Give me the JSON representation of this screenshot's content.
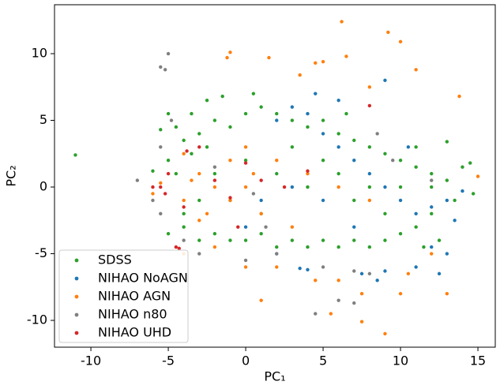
{
  "chart_data": {
    "type": "scatter",
    "xlabel": "PC₁",
    "ylabel": "PC₂",
    "xlim": [
      -12.35,
      16.12
    ],
    "ylim": [
      -12.01,
      13.67
    ],
    "xticks": [
      -10,
      -5,
      0,
      5,
      10,
      15
    ],
    "yticks": [
      -10,
      -5,
      0,
      5,
      10
    ],
    "legend": "lower left",
    "grid": false,
    "series": [
      {
        "name": "SDSS",
        "color": "#2ca02c",
        "x": [
          -11,
          -4,
          -3.5,
          -3,
          -2.5,
          -4.5,
          -3,
          -2,
          -1,
          0,
          1,
          2,
          3,
          4,
          5,
          6,
          7,
          8,
          9,
          10,
          11,
          12,
          13,
          14,
          14.5,
          13.5,
          12,
          11,
          10,
          9,
          8,
          7,
          6,
          5,
          4,
          3,
          2,
          1,
          0,
          -1,
          -2,
          -3,
          -4,
          -5,
          -5,
          -4,
          -2,
          0,
          2,
          4,
          6,
          8,
          10,
          12,
          3,
          5,
          7,
          9,
          1,
          -1,
          -4.5,
          -3.5,
          -2.5,
          -1.5,
          0.5,
          -5.5,
          -5,
          6.5,
          11,
          13,
          14.7,
          12.5,
          11.5,
          -6
        ],
        "y": [
          2.4,
          3.5,
          2.5,
          4,
          3,
          1,
          -1,
          5,
          4.5,
          5.5,
          6,
          5.5,
          5,
          4.5,
          5,
          4,
          3.5,
          3,
          2.5,
          2,
          1.5,
          1,
          0.5,
          1.5,
          1.8,
          -1,
          -2,
          -3,
          -3.5,
          -4,
          -4.5,
          -4,
          -4.5,
          -4,
          -4.5,
          -4,
          -4.5,
          -3.5,
          -4,
          -4,
          -3.5,
          -4,
          -3,
          -3.5,
          2,
          -2,
          1,
          2,
          1,
          0,
          1,
          0,
          0,
          0,
          3,
          2,
          -1,
          -2,
          -2,
          -1,
          4.5,
          5.5,
          6.5,
          6.8,
          7,
          4.3,
          5.5,
          5.5,
          3,
          3.4,
          -0.5,
          -4,
          -4.5,
          1.2
        ]
      },
      {
        "name": "NIHAO NoAGN",
        "color": "#1f77b4",
        "x": [
          2,
          3,
          4,
          5,
          6,
          7,
          8,
          9,
          10,
          11,
          12,
          13,
          13.5,
          12,
          13,
          11,
          9,
          7.5,
          4,
          3.5,
          2,
          0,
          1,
          3,
          5,
          7,
          9,
          6,
          14,
          10.5,
          12.5,
          4.5,
          8.5
        ],
        "y": [
          5,
          6,
          5.5,
          4,
          3,
          2,
          1,
          0,
          -1,
          -2,
          -1.5,
          -1,
          -2.5,
          -4.5,
          -5,
          -6,
          -6.3,
          -6.5,
          -6.2,
          -6.1,
          -5,
          -3,
          -1,
          0,
          -1,
          -3,
          8,
          6.5,
          -0.3,
          3,
          -6.5,
          7,
          -7
        ]
      },
      {
        "name": "NIHAO AGN",
        "color": "#ff7f0e",
        "x": [
          -2,
          -1,
          0,
          -3,
          -4,
          -2.5,
          -1,
          0.5,
          1,
          -3.5,
          -6,
          -5.5,
          -4,
          -3,
          0,
          2,
          4,
          6,
          8,
          -1,
          -1.2,
          1.5,
          4.5,
          5,
          6.2,
          9.2,
          10,
          6.5,
          11,
          13.8,
          8,
          3.5,
          12,
          13,
          9,
          7.5,
          5.5,
          4.5,
          1,
          0,
          -4,
          2,
          6,
          10,
          15,
          -2,
          3,
          7.5,
          10.5
        ],
        "y": [
          0,
          -1,
          0,
          1,
          -1,
          -2,
          2,
          1,
          -2,
          0.5,
          -0.5,
          0.3,
          2.5,
          -2.5,
          3,
          2,
          1,
          0,
          -1,
          10.1,
          9.7,
          9.7,
          9.3,
          9.4,
          12.4,
          11.6,
          10.9,
          9.8,
          8.8,
          6.8,
          7.5,
          8.4,
          -5,
          -8,
          -11,
          -10.1,
          -9.5,
          -7,
          -8.5,
          -6,
          -5,
          -6,
          -7,
          -8,
          0.8,
          -4.5,
          -3,
          -8,
          -6.5
        ]
      },
      {
        "name": "NIHAO n80",
        "color": "#7f7f7f",
        "x": [
          -5.5,
          -5,
          -5.2,
          -6,
          -7,
          -5.5,
          -5.5,
          -4,
          -3,
          0,
          2,
          5,
          7,
          8,
          6,
          7,
          4.5,
          0.5,
          -2,
          9.5,
          12,
          8.5,
          -4.8,
          1.3
        ],
        "y": [
          9,
          10,
          8.8,
          -1,
          0.5,
          3,
          -2,
          -4,
          -5,
          -5.5,
          -5,
          -6,
          -6.3,
          -6.5,
          -8.5,
          -8.7,
          -9.5,
          -0.5,
          1.5,
          2,
          0.5,
          4,
          5,
          -3
        ]
      },
      {
        "name": "NIHAO UHD",
        "color": "#d62728",
        "x": [
          -5.5,
          -5,
          -6,
          -5.2,
          -4.5,
          -4.3,
          -3,
          -2,
          -1,
          0,
          1,
          -3.8,
          2.5,
          4,
          -0.5,
          -4,
          8
        ],
        "y": [
          0,
          1,
          0,
          -0.5,
          -4.5,
          -4.6,
          3,
          0.5,
          -0.8,
          1.8,
          0.5,
          2.7,
          0,
          1.2,
          -3,
          -1.5,
          6.1
        ]
      }
    ]
  }
}
